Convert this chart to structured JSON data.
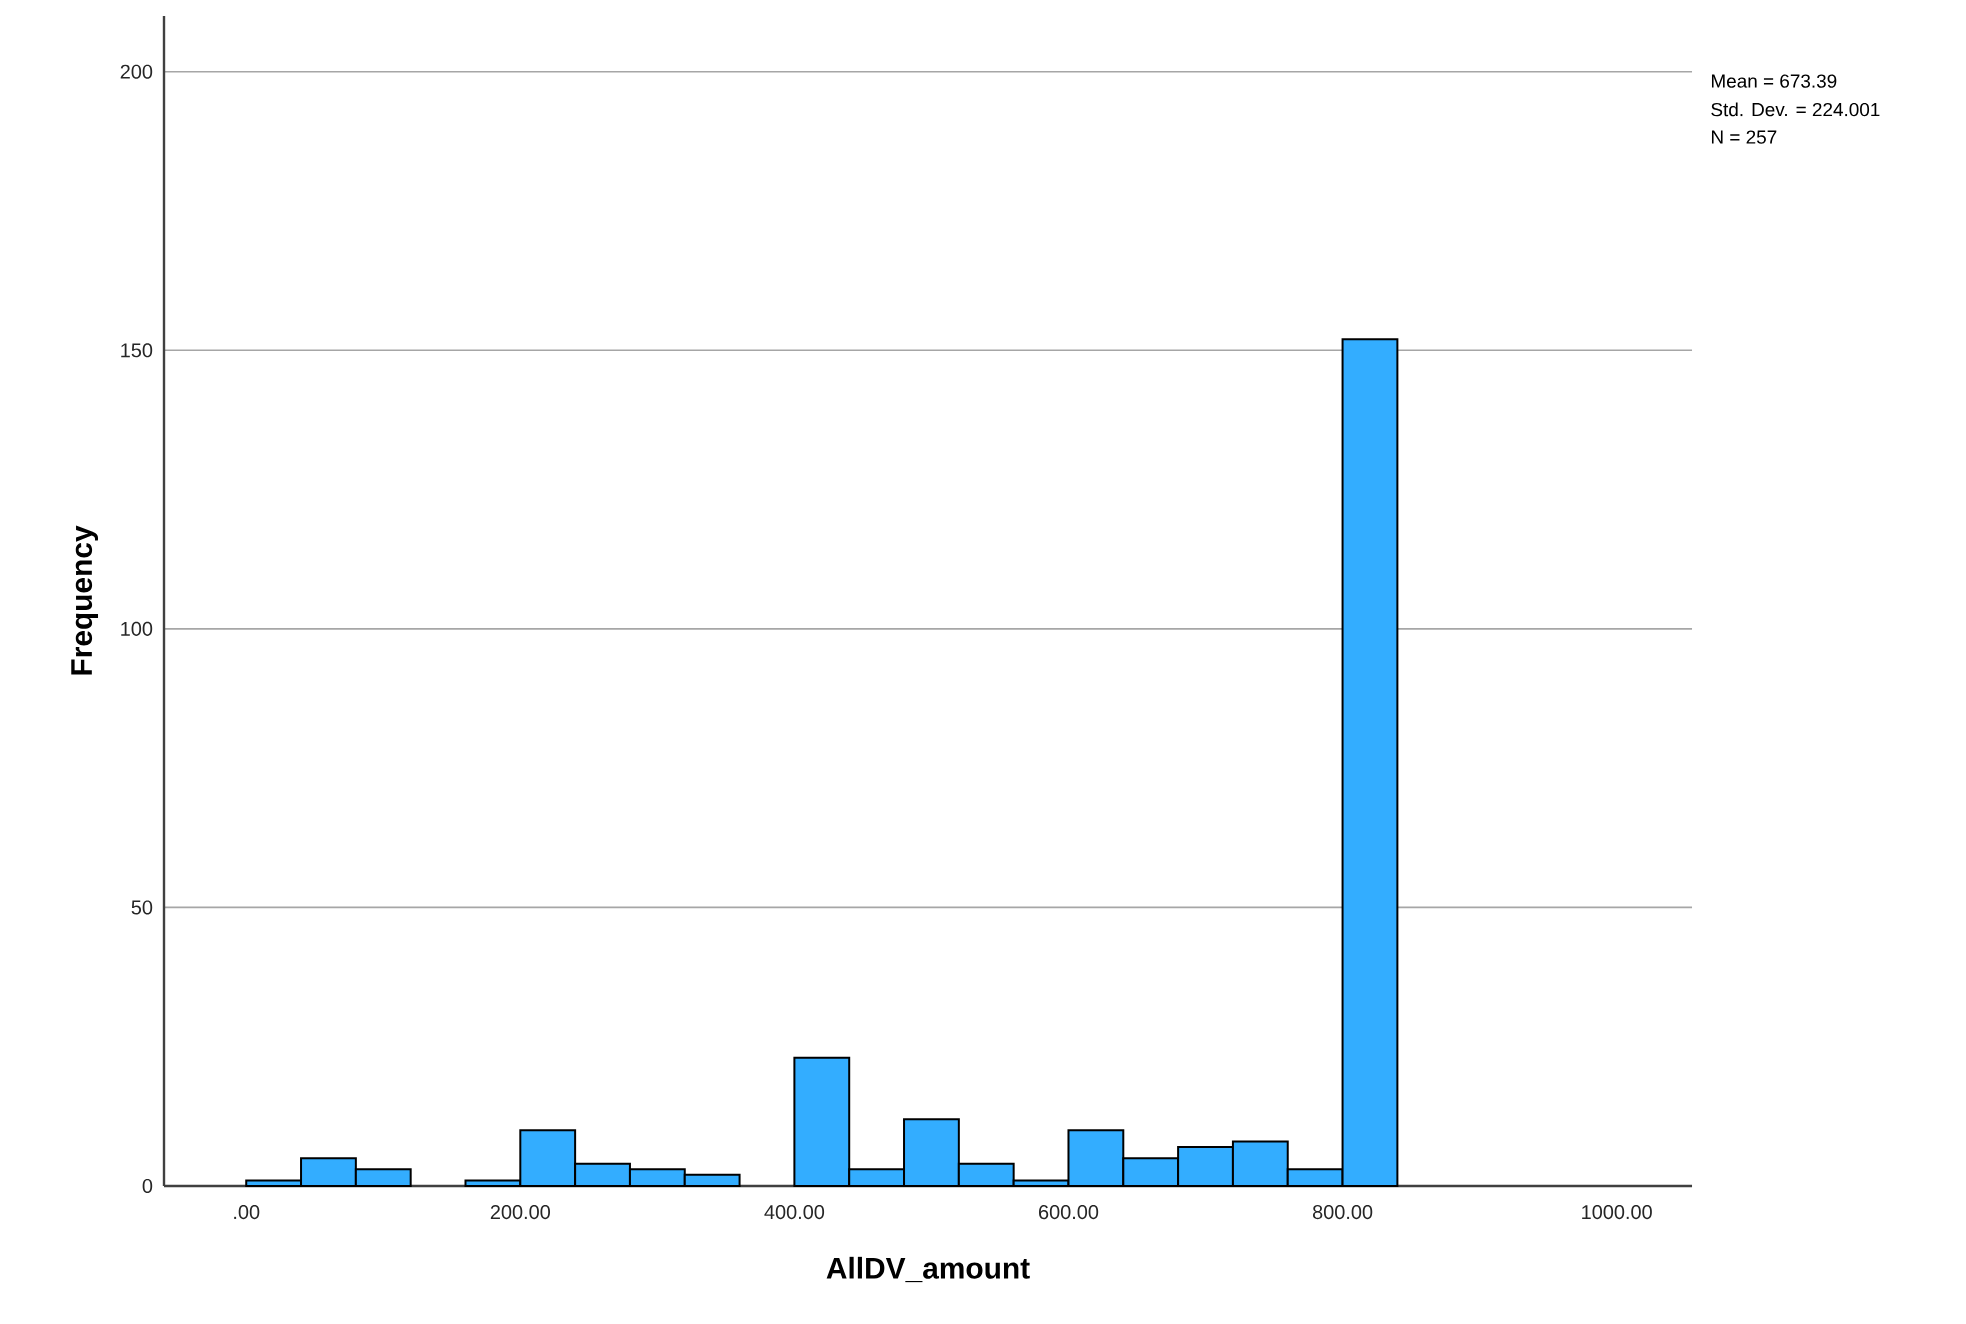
{
  "chart_data": {
    "type": "histogram",
    "xlabel": "AllDV_amount",
    "ylabel": "Frequency",
    "bins": [
      0,
      40,
      80,
      120,
      160,
      200,
      240,
      280,
      320,
      360,
      400,
      440,
      480,
      520,
      560,
      600,
      640,
      680,
      720,
      760,
      800,
      840
    ],
    "values": [
      1,
      5,
      3,
      0,
      1,
      10,
      4,
      3,
      2,
      0,
      23,
      3,
      12,
      4,
      1,
      10,
      5,
      7,
      8,
      3,
      152
    ],
    "color": "#33adff",
    "xlim": [
      -60,
      1055
    ],
    "ylim": [
      0,
      210
    ],
    "xticks": [
      {
        "value": 0,
        "label": ".00"
      },
      {
        "value": 200,
        "label": "200.00"
      },
      {
        "value": 400,
        "label": "400.00"
      },
      {
        "value": 600,
        "label": "600.00"
      },
      {
        "value": 800,
        "label": "800.00"
      },
      {
        "value": 1000,
        "label": "1000.00"
      }
    ],
    "yticks": [
      0,
      50,
      100,
      150,
      200
    ],
    "grid": "y",
    "annotations": [
      "Mean = 673.39",
      "Std. Dev. = 224.001",
      "N = 257"
    ]
  }
}
